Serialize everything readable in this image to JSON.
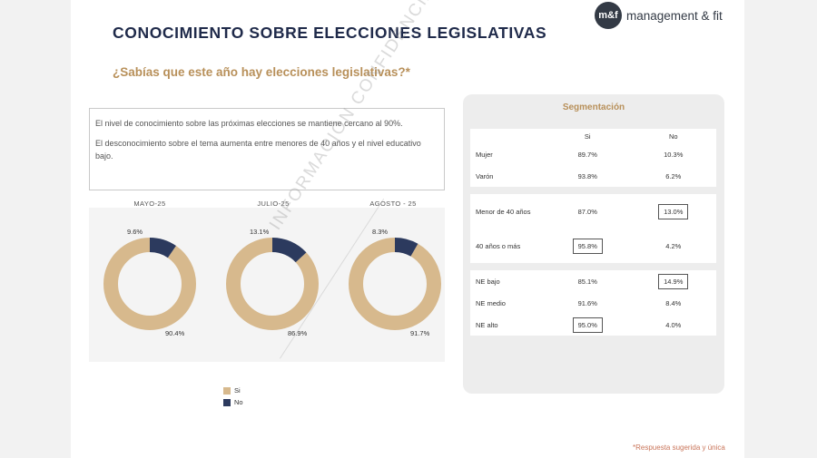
{
  "header": {
    "title": "CONOCIMIENTO SOBRE ELECCIONES LEGISLATIVAS",
    "subtitle": "¿Sabías que este año hay elecciones legislativas?*",
    "logo_mark": "m&f",
    "logo_text": "management & fit"
  },
  "summary": {
    "line1": "El nivel de conocimiento sobre las próximas elecciones se mantiene cercano al 90%.",
    "line2": "El desconocimiento sobre el tema aumenta entre menores de 40 años y el nivel educativo bajo."
  },
  "colors": {
    "si": "#d7b98d",
    "no": "#2c3a5e",
    "accent": "#b8905a",
    "title": "#1f2a4a"
  },
  "chart_data": [
    {
      "type": "pie",
      "donut": true,
      "charts": [
        {
          "title": "MAYO-25",
          "slices": [
            {
              "label": "Si",
              "value": 90.4,
              "label_text": "90.4%"
            },
            {
              "label": "No",
              "value": 9.6,
              "label_text": "9.6%"
            }
          ]
        },
        {
          "title": "JULIO-25",
          "slices": [
            {
              "label": "Si",
              "value": 86.9,
              "label_text": "86.9%"
            },
            {
              "label": "No",
              "value": 13.1,
              "label_text": "13.1%"
            }
          ]
        },
        {
          "title": "AGOSTO - 25",
          "slices": [
            {
              "label": "Si",
              "value": 91.7,
              "label_text": "91.7%"
            },
            {
              "label": "No",
              "value": 8.3,
              "label_text": "8.3%"
            }
          ]
        }
      ],
      "legend": [
        "Si",
        "No"
      ],
      "legend_position": "bottom-left"
    },
    {
      "type": "table",
      "title": "Segmentación",
      "columns": [
        "Si",
        "No"
      ],
      "groups": [
        [
          {
            "label": "Mujer",
            "si": "89.7%",
            "no": "10.3%",
            "highlight": ""
          },
          {
            "label": "Varón",
            "si": "93.8%",
            "no": "6.2%",
            "highlight": ""
          }
        ],
        [
          {
            "label": "Menor de 40 años",
            "si": "87.0%",
            "no": "13.0%",
            "highlight": "no"
          },
          {
            "label": "40 años o más",
            "si": "95.8%",
            "no": "4.2%",
            "highlight": "si"
          }
        ],
        [
          {
            "label": "NE bajo",
            "si": "85.1%",
            "no": "14.9%",
            "highlight": "no"
          },
          {
            "label": "NE medio",
            "si": "91.6%",
            "no": "8.4%",
            "highlight": ""
          },
          {
            "label": "NE alto",
            "si": "95.0%",
            "no": "4.0%",
            "highlight": "si"
          }
        ]
      ]
    }
  ],
  "watermark": "INFORMACIÓN CONFIDENCIAL",
  "footnote": "*Respuesta sugerida y única"
}
